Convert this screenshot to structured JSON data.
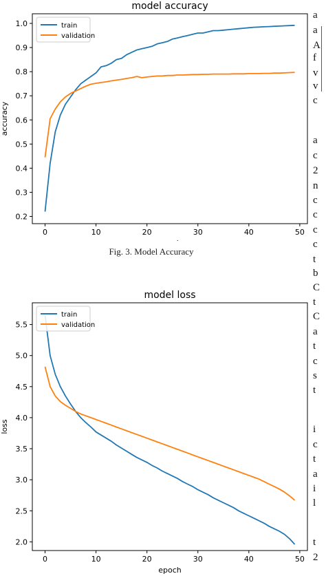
{
  "figure_caption": "Fig. 3.  Model Accuracy",
  "side_text": [
    "a",
    "a",
    "A",
    "f",
    "v",
    "v",
    "c",
    "a",
    "c",
    "2",
    "n",
    "c",
    "c",
    "c",
    "c",
    "t",
    "b",
    "C",
    "t",
    "C",
    "a",
    "t",
    "c",
    "s",
    "t",
    "i",
    "c",
    "t",
    "a",
    "i",
    "l",
    "t",
    "2"
  ],
  "chart_data": [
    {
      "type": "line",
      "title": "model accuracy",
      "xlabel": "epoch",
      "ylabel": "accuracy",
      "xlim": [
        -2.5,
        51.5
      ],
      "ylim": [
        0.17,
        1.04
      ],
      "xticks": [
        0,
        10,
        20,
        30,
        40,
        50
      ],
      "yticks": [
        0.2,
        0.3,
        0.4,
        0.5,
        0.6,
        0.7,
        0.8,
        0.9,
        1.0
      ],
      "grid": false,
      "legend": "top-left",
      "x": [
        0,
        1,
        2,
        3,
        4,
        5,
        6,
        7,
        8,
        9,
        10,
        11,
        12,
        13,
        14,
        15,
        16,
        17,
        18,
        19,
        20,
        21,
        22,
        23,
        24,
        25,
        26,
        27,
        28,
        29,
        30,
        31,
        32,
        33,
        34,
        35,
        36,
        37,
        38,
        39,
        40,
        41,
        42,
        43,
        44,
        45,
        46,
        47,
        48,
        49
      ],
      "series": [
        {
          "name": "train",
          "color": "#1f77b4",
          "values": [
            0.22,
            0.42,
            0.55,
            0.62,
            0.665,
            0.695,
            0.725,
            0.75,
            0.765,
            0.78,
            0.795,
            0.82,
            0.825,
            0.835,
            0.85,
            0.855,
            0.87,
            0.88,
            0.89,
            0.895,
            0.9,
            0.905,
            0.915,
            0.92,
            0.925,
            0.935,
            0.94,
            0.945,
            0.95,
            0.955,
            0.96,
            0.96,
            0.965,
            0.97,
            0.97,
            0.972,
            0.974,
            0.976,
            0.978,
            0.98,
            0.982,
            0.984,
            0.985,
            0.986,
            0.987,
            0.988,
            0.989,
            0.99,
            0.991,
            0.992
          ]
        },
        {
          "name": "validation",
          "color": "#ff7f0e",
          "values": [
            0.445,
            0.605,
            0.645,
            0.675,
            0.695,
            0.71,
            0.72,
            0.73,
            0.74,
            0.748,
            0.752,
            0.755,
            0.758,
            0.762,
            0.765,
            0.768,
            0.772,
            0.775,
            0.78,
            0.775,
            0.778,
            0.78,
            0.782,
            0.782,
            0.784,
            0.784,
            0.786,
            0.786,
            0.787,
            0.788,
            0.788,
            0.789,
            0.789,
            0.79,
            0.79,
            0.79,
            0.79,
            0.791,
            0.791,
            0.791,
            0.792,
            0.792,
            0.792,
            0.793,
            0.793,
            0.794,
            0.794,
            0.795,
            0.796,
            0.797
          ]
        }
      ]
    },
    {
      "type": "line",
      "title": "model loss",
      "xlabel": "epoch",
      "ylabel": "loss",
      "xlim": [
        -2.5,
        51.5
      ],
      "ylim": [
        1.86,
        5.85
      ],
      "xticks": [
        0,
        10,
        20,
        30,
        40,
        50
      ],
      "yticks": [
        2.0,
        2.5,
        3.0,
        3.5,
        4.0,
        4.5,
        5.0,
        5.5
      ],
      "grid": false,
      "legend": "top-left",
      "x": [
        0,
        1,
        2,
        3,
        4,
        5,
        6,
        7,
        8,
        9,
        10,
        11,
        12,
        13,
        14,
        15,
        16,
        17,
        18,
        19,
        20,
        21,
        22,
        23,
        24,
        25,
        26,
        27,
        28,
        29,
        30,
        31,
        32,
        33,
        34,
        35,
        36,
        37,
        38,
        39,
        40,
        41,
        42,
        43,
        44,
        45,
        46,
        47,
        48,
        49
      ],
      "series": [
        {
          "name": "train",
          "color": "#1f77b4",
          "values": [
            5.65,
            5.0,
            4.7,
            4.5,
            4.35,
            4.22,
            4.1,
            4.0,
            3.92,
            3.85,
            3.77,
            3.72,
            3.67,
            3.62,
            3.56,
            3.51,
            3.46,
            3.41,
            3.36,
            3.32,
            3.28,
            3.23,
            3.19,
            3.14,
            3.1,
            3.06,
            3.02,
            2.97,
            2.93,
            2.89,
            2.84,
            2.8,
            2.76,
            2.71,
            2.67,
            2.63,
            2.59,
            2.55,
            2.5,
            2.46,
            2.42,
            2.38,
            2.34,
            2.3,
            2.25,
            2.21,
            2.17,
            2.12,
            2.05,
            1.96
          ]
        },
        {
          "name": "validation",
          "color": "#ff7f0e",
          "values": [
            4.82,
            4.5,
            4.35,
            4.26,
            4.2,
            4.15,
            4.1,
            4.06,
            4.03,
            4.0,
            3.97,
            3.94,
            3.91,
            3.88,
            3.85,
            3.82,
            3.79,
            3.76,
            3.73,
            3.7,
            3.67,
            3.64,
            3.61,
            3.58,
            3.55,
            3.52,
            3.49,
            3.46,
            3.43,
            3.4,
            3.37,
            3.34,
            3.31,
            3.28,
            3.25,
            3.22,
            3.19,
            3.16,
            3.13,
            3.1,
            3.07,
            3.04,
            3.01,
            2.97,
            2.93,
            2.89,
            2.85,
            2.8,
            2.74,
            2.67
          ]
        }
      ]
    }
  ]
}
